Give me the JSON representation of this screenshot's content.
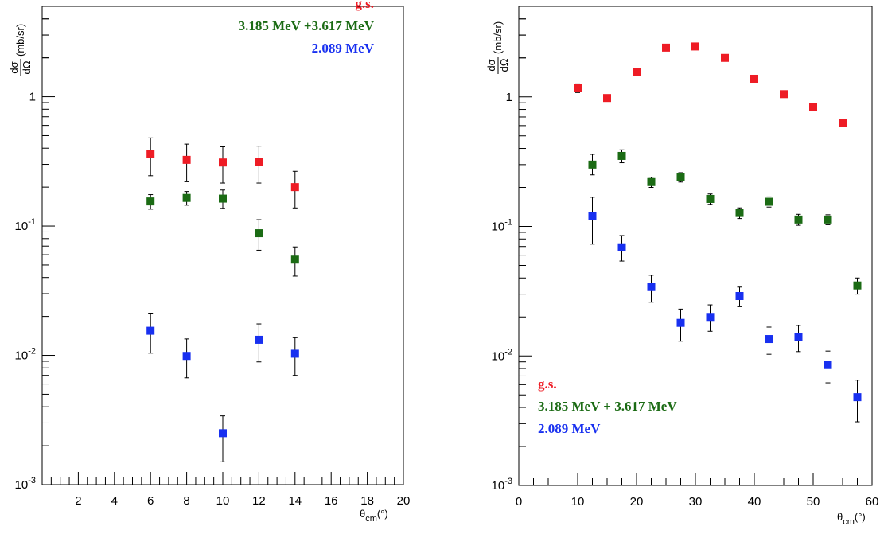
{
  "chart_data": [
    {
      "type": "scatter",
      "x_scale": "linear",
      "y_scale": "log",
      "xlim": [
        0,
        20
      ],
      "ylim": [
        0.001,
        5
      ],
      "x_ticks": [
        2,
        4,
        6,
        8,
        10,
        12,
        14,
        16,
        18,
        20
      ],
      "y_ticks": [
        {
          "value": 0.001,
          "base": "10",
          "exp": "-3"
        },
        {
          "value": 0.01,
          "base": "10",
          "exp": "-2"
        },
        {
          "value": 0.1,
          "base": "10",
          "exp": "-1"
        },
        {
          "value": 1,
          "base": "1",
          "exp": ""
        }
      ],
      "xlabel": {
        "base": "θ",
        "sub": "cm",
        "rest": "(°)"
      },
      "ylabel": {
        "num": "dσ",
        "den": "dΩ",
        "rest": "(mb/sr)"
      },
      "legend_position": "top-right",
      "series": [
        {
          "name": "g.s.",
          "color": "#ee1c25",
          "points": [
            {
              "x": 6,
              "y": 0.36,
              "lo": 0.245,
              "hi": 0.48
            },
            {
              "x": 8,
              "y": 0.325,
              "lo": 0.22,
              "hi": 0.43
            },
            {
              "x": 10,
              "y": 0.31,
              "lo": 0.215,
              "hi": 0.41
            },
            {
              "x": 12,
              "y": 0.315,
              "lo": 0.215,
              "hi": 0.415
            },
            {
              "x": 14,
              "y": 0.2,
              "lo": 0.138,
              "hi": 0.265
            }
          ]
        },
        {
          "name": "3.185 MeV +3.617 MeV",
          "color": "#1b6b14",
          "points": [
            {
              "x": 6,
              "y": 0.155,
              "lo": 0.135,
              "hi": 0.175
            },
            {
              "x": 8,
              "y": 0.165,
              "lo": 0.145,
              "hi": 0.185
            },
            {
              "x": 10,
              "y": 0.163,
              "lo": 0.137,
              "hi": 0.19
            },
            {
              "x": 12,
              "y": 0.088,
              "lo": 0.065,
              "hi": 0.112
            },
            {
              "x": 14,
              "y": 0.055,
              "lo": 0.041,
              "hi": 0.069
            }
          ]
        },
        {
          "name": "2.089 MeV",
          "color": "#1830f0",
          "points": [
            {
              "x": 6,
              "y": 0.0155,
              "lo": 0.0104,
              "hi": 0.0212
            },
            {
              "x": 8,
              "y": 0.0099,
              "lo": 0.0067,
              "hi": 0.0134
            },
            {
              "x": 10,
              "y": 0.0025,
              "lo": 0.0015,
              "hi": 0.0034
            },
            {
              "x": 12,
              "y": 0.0132,
              "lo": 0.0089,
              "hi": 0.0175
            },
            {
              "x": 14,
              "y": 0.0103,
              "lo": 0.007,
              "hi": 0.0137
            }
          ]
        }
      ]
    },
    {
      "type": "scatter",
      "x_scale": "linear",
      "y_scale": "log",
      "xlim": [
        0,
        60
      ],
      "ylim": [
        0.001,
        5
      ],
      "x_ticks": [
        0,
        10,
        20,
        30,
        40,
        50,
        60
      ],
      "y_ticks": [
        {
          "value": 0.001,
          "base": "10",
          "exp": "-3"
        },
        {
          "value": 0.01,
          "base": "10",
          "exp": "-2"
        },
        {
          "value": 0.1,
          "base": "10",
          "exp": "-1"
        },
        {
          "value": 1,
          "base": "1",
          "exp": ""
        }
      ],
      "xlabel": {
        "base": "θ",
        "sub": "cm",
        "rest": "(°)"
      },
      "ylabel": {
        "num": "dσ",
        "den": "dΩ",
        "rest": "(mb/sr)"
      },
      "legend_position": "bottom-left",
      "series": [
        {
          "name": "g.s.",
          "color": "#ee1c25",
          "points": [
            {
              "x": 10,
              "y": 1.17,
              "lo": 1.08,
              "hi": 1.26
            },
            {
              "x": 15,
              "y": 0.98
            },
            {
              "x": 20,
              "y": 1.55
            },
            {
              "x": 25,
              "y": 2.4
            },
            {
              "x": 30,
              "y": 2.45
            },
            {
              "x": 35,
              "y": 2.0
            },
            {
              "x": 40,
              "y": 1.38
            },
            {
              "x": 45,
              "y": 1.05
            },
            {
              "x": 50,
              "y": 0.83
            },
            {
              "x": 55,
              "y": 0.63
            }
          ]
        },
        {
          "name": "3.185 MeV + 3.617 MeV",
          "color": "#1b6b14",
          "points": [
            {
              "x": 12.5,
              "y": 0.3,
              "lo": 0.25,
              "hi": 0.36
            },
            {
              "x": 17.5,
              "y": 0.35,
              "lo": 0.31,
              "hi": 0.39
            },
            {
              "x": 22.5,
              "y": 0.22,
              "lo": 0.2,
              "hi": 0.24
            },
            {
              "x": 27.5,
              "y": 0.24,
              "lo": 0.22,
              "hi": 0.26
            },
            {
              "x": 32.5,
              "y": 0.163,
              "lo": 0.148,
              "hi": 0.178
            },
            {
              "x": 37.5,
              "y": 0.127,
              "lo": 0.115,
              "hi": 0.139
            },
            {
              "x": 42.5,
              "y": 0.155,
              "lo": 0.141,
              "hi": 0.169
            },
            {
              "x": 47.5,
              "y": 0.113,
              "lo": 0.102,
              "hi": 0.124
            },
            {
              "x": 52.5,
              "y": 0.113,
              "lo": 0.103,
              "hi": 0.123
            },
            {
              "x": 57.5,
              "y": 0.035,
              "lo": 0.03,
              "hi": 0.04
            }
          ]
        },
        {
          "name": "2.089 MeV",
          "color": "#1830f0",
          "points": [
            {
              "x": 12.5,
              "y": 0.12,
              "lo": 0.073,
              "hi": 0.168
            },
            {
              "x": 17.5,
              "y": 0.069,
              "lo": 0.054,
              "hi": 0.085
            },
            {
              "x": 22.5,
              "y": 0.034,
              "lo": 0.026,
              "hi": 0.042
            },
            {
              "x": 27.5,
              "y": 0.018,
              "lo": 0.013,
              "hi": 0.023
            },
            {
              "x": 32.5,
              "y": 0.02,
              "lo": 0.0155,
              "hi": 0.0248
            },
            {
              "x": 37.5,
              "y": 0.029,
              "lo": 0.024,
              "hi": 0.034
            },
            {
              "x": 42.5,
              "y": 0.0135,
              "lo": 0.0103,
              "hi": 0.0167
            },
            {
              "x": 47.5,
              "y": 0.014,
              "lo": 0.0108,
              "hi": 0.0172
            },
            {
              "x": 52.5,
              "y": 0.0085,
              "lo": 0.0062,
              "hi": 0.0109
            },
            {
              "x": 57.5,
              "y": 0.0048,
              "lo": 0.0031,
              "hi": 0.0065
            }
          ]
        }
      ]
    }
  ]
}
